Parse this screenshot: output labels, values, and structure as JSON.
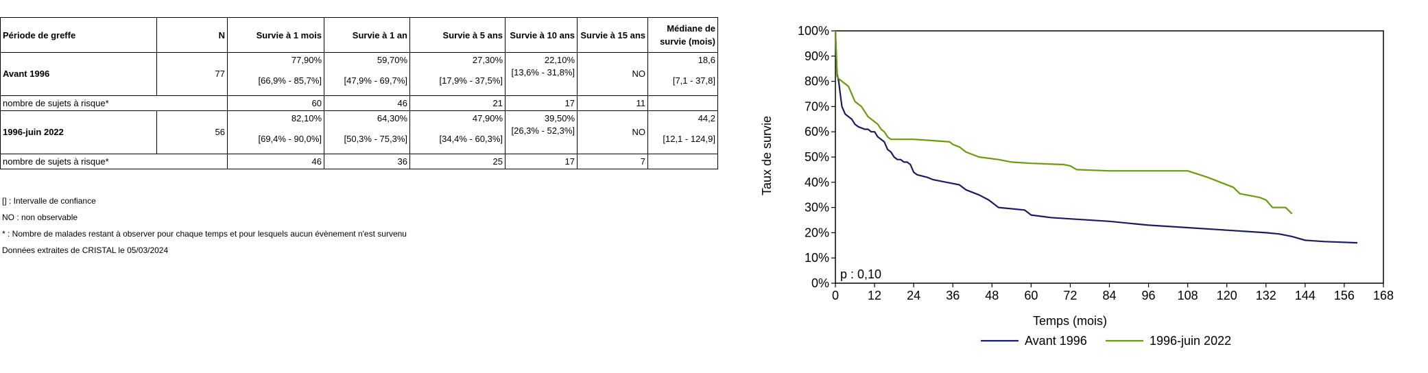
{
  "table": {
    "headers": [
      "Période de greffe",
      "N",
      "Survie à 1 mois",
      "Survie à 1 an",
      "Survie à 5 ans",
      "Survie à 10 ans",
      "Survie à 15 ans",
      "Médiane de survie (mois)"
    ],
    "groups": [
      {
        "label": "Avant 1996",
        "n": "77",
        "values": [
          "77,90%",
          "59,70%",
          "27,30%",
          "22,10%",
          "NO",
          "18,6"
        ],
        "ci": [
          "[66,9% - 85,7%]",
          "[47,9% - 69,7%]",
          "[17,9% - 37,5%]",
          "[13,6% - 31,8%]",
          "",
          "[7,1 - 37,8]"
        ],
        "risk_label": "nombre de sujets à risque*",
        "risk": [
          "60",
          "46",
          "21",
          "17",
          "11",
          ""
        ]
      },
      {
        "label": "1996-juin 2022",
        "n": "56",
        "values": [
          "82,10%",
          "64,30%",
          "47,90%",
          "39,50%",
          "NO",
          "44,2"
        ],
        "ci": [
          "[69,4% - 90,0%]",
          "[50,3% - 75,3%]",
          "[34,4% - 60,3%]",
          "[26,3% - 52,3%]",
          "",
          "[12,1 - 124,9]"
        ],
        "risk_label": "nombre de sujets à risque*",
        "risk": [
          "46",
          "36",
          "25",
          "17",
          "7",
          ""
        ]
      }
    ]
  },
  "notes": [
    "[] : Intervalle de confiance",
    "NO : non observable",
    "* : Nombre de malades restant à observer pour chaque temps et pour lesquels aucun évènement n'est survenu",
    "Données extraites de CRISTAL le 05/03/2024"
  ],
  "chart_data": {
    "type": "line",
    "xlabel": "Temps (mois)",
    "ylabel": "Taux de survie",
    "xlim": [
      0,
      168
    ],
    "ylim": [
      0,
      100
    ],
    "x_ticks": [
      "0",
      "12",
      "24",
      "36",
      "48",
      "60",
      "72",
      "84",
      "96",
      "108",
      "120",
      "132",
      "144",
      "156",
      "168"
    ],
    "y_ticks": [
      "0%",
      "10%",
      "20%",
      "30%",
      "40%",
      "50%",
      "60%",
      "70%",
      "80%",
      "90%",
      "100%"
    ],
    "annotation": "p : 0,10",
    "legend_position": "bottom",
    "series": [
      {
        "name": "Avant 1996",
        "color": "#1a1a5e",
        "x": [
          0,
          0.5,
          1,
          1.5,
          2,
          3,
          4,
          5,
          6,
          7,
          9,
          10,
          11,
          12,
          13,
          14,
          15,
          16,
          17,
          18,
          19,
          20,
          21,
          22,
          23,
          24,
          25,
          28,
          30,
          34,
          38,
          40,
          44,
          47,
          49,
          50,
          58,
          60,
          66,
          72,
          84,
          96,
          108,
          120,
          132,
          136,
          140,
          144,
          150,
          160
        ],
        "y": [
          100,
          83,
          80,
          75,
          70,
          67,
          66,
          65,
          63,
          62,
          61,
          61,
          60,
          60,
          58,
          57,
          56,
          53,
          52,
          50,
          49,
          49,
          48,
          48,
          47,
          44,
          43,
          42,
          41,
          40,
          39,
          37,
          35,
          33,
          31,
          30,
          29,
          27,
          26,
          25.5,
          24.5,
          23,
          22,
          21,
          20,
          19.5,
          18.5,
          17,
          16.5,
          16
        ]
      },
      {
        "name": "1996-juin 2022",
        "color": "#6b9a0f",
        "x": [
          0,
          0.5,
          1,
          2,
          3,
          4,
          5,
          6,
          7,
          8,
          9,
          10,
          11,
          12,
          13,
          14,
          15,
          16,
          17,
          24,
          30,
          35,
          36,
          38,
          40,
          44,
          50,
          54,
          60,
          70,
          72,
          74,
          84,
          96,
          108,
          114,
          118,
          122,
          124,
          130,
          132,
          134,
          138,
          140
        ],
        "y": [
          100,
          82,
          81,
          80,
          79,
          78,
          75,
          72,
          71,
          70,
          68,
          66,
          65,
          64,
          63,
          61,
          60,
          58,
          57,
          57,
          56.5,
          56,
          55,
          54,
          52,
          50,
          49,
          48,
          47.5,
          47,
          46.5,
          45,
          44.5,
          44.5,
          44.5,
          42,
          40,
          38,
          35.5,
          34,
          33,
          30,
          30,
          27.5
        ]
      }
    ]
  }
}
